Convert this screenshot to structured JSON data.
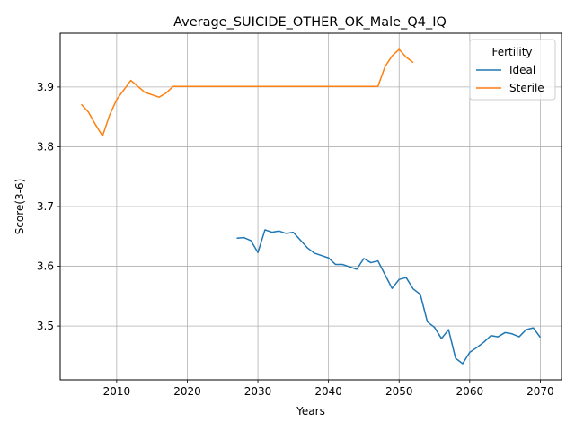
{
  "chart_data": {
    "type": "line",
    "title": "Average_SUICIDE_OTHER_OK_Male_Q4_IQ",
    "xlabel": "Years",
    "ylabel": "Score(3-6)",
    "xlim": [
      2002,
      2073
    ],
    "ylim": [
      3.41,
      3.99
    ],
    "xticks": [
      2010,
      2020,
      2030,
      2040,
      2050,
      2060,
      2070
    ],
    "yticks": [
      3.5,
      3.6,
      3.7,
      3.8,
      3.9
    ],
    "grid": true,
    "legend": {
      "title": "Fertility",
      "placement": "top-right"
    },
    "series": [
      {
        "name": "Ideal",
        "color": "#1f77b4",
        "x": [
          2027,
          2028,
          2029,
          2030,
          2031,
          2032,
          2033,
          2034,
          2035,
          2036,
          2037,
          2038,
          2039,
          2040,
          2041,
          2042,
          2043,
          2044,
          2045,
          2046,
          2047,
          2048,
          2049,
          2050,
          2051,
          2052,
          2053,
          2054,
          2055,
          2056,
          2057,
          2058,
          2059,
          2060,
          2061,
          2062,
          2063,
          2064,
          2065,
          2066,
          2067,
          2068,
          2069,
          2070
        ],
        "y": [
          3.647,
          3.648,
          3.643,
          3.623,
          3.661,
          3.657,
          3.659,
          3.655,
          3.657,
          3.644,
          3.631,
          3.622,
          3.618,
          3.614,
          3.603,
          3.603,
          3.599,
          3.595,
          3.613,
          3.606,
          3.609,
          3.586,
          3.563,
          3.578,
          3.581,
          3.562,
          3.553,
          3.507,
          3.498,
          3.479,
          3.494,
          3.446,
          3.437,
          3.456,
          3.464,
          3.473,
          3.484,
          3.482,
          3.489,
          3.487,
          3.482,
          3.494,
          3.497,
          3.481
        ]
      },
      {
        "name": "Sterile",
        "color": "#ff7f0e",
        "x": [
          2005,
          2006,
          2007,
          2008,
          2009,
          2010,
          2011,
          2012,
          2013,
          2014,
          2015,
          2016,
          2017,
          2018,
          2019,
          2020,
          2025,
          2030,
          2035,
          2040,
          2045,
          2046,
          2047,
          2048,
          2049,
          2050,
          2051,
          2052
        ],
        "y": [
          3.871,
          3.858,
          3.837,
          3.818,
          3.853,
          3.879,
          3.895,
          3.911,
          3.901,
          3.891,
          3.887,
          3.883,
          3.89,
          3.901,
          3.901,
          3.901,
          3.901,
          3.901,
          3.901,
          3.901,
          3.901,
          3.901,
          3.901,
          3.934,
          3.952,
          3.963,
          3.95,
          3.941
        ]
      }
    ]
  }
}
